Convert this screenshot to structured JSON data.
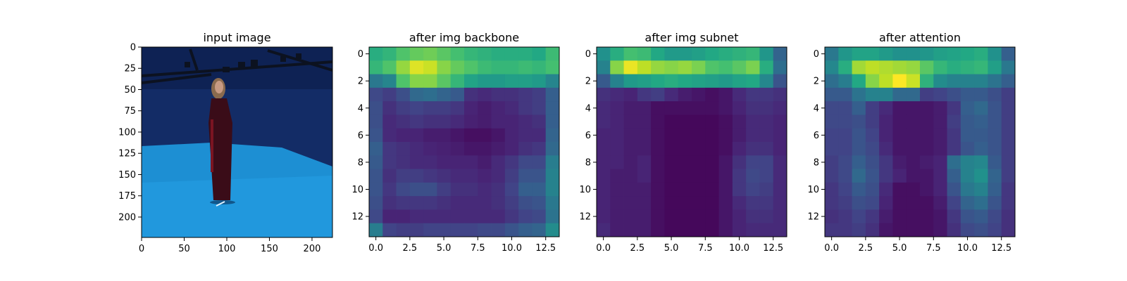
{
  "figure": {
    "panels": [
      {
        "title": "input image"
      },
      {
        "title": "after img backbone"
      },
      {
        "title": "after img subnet"
      },
      {
        "title": "after attention"
      }
    ]
  },
  "colors": {
    "viridis": [
      "#440154",
      "#482475",
      "#414487",
      "#355f8d",
      "#2a788e",
      "#21918c",
      "#22a884",
      "#44bf70",
      "#7ad151",
      "#bddf26",
      "#fde725"
    ],
    "photo_wall": "#132c66",
    "photo_floor": "#1d8fd3",
    "photo_rig": "#0c1220",
    "person_dress": "#3a0c18",
    "person_skin": "#c79a83"
  },
  "chart_data": [
    {
      "type": "image",
      "title": "input image",
      "image_content": "photo of a person standing in a blue-lit studio",
      "xlim": [
        0,
        224
      ],
      "ylim": [
        224,
        0
      ],
      "xticks": [
        0,
        50,
        100,
        150,
        200
      ],
      "yticks": [
        0,
        25,
        50,
        75,
        100,
        125,
        150,
        175,
        200
      ]
    },
    {
      "type": "heatmap",
      "title": "after img backbone",
      "colormap": "viridis",
      "xlim": [
        -0.5,
        13.5
      ],
      "ylim": [
        13.5,
        -0.5
      ],
      "xticks": [
        0.0,
        2.5,
        5.0,
        7.5,
        10.0,
        12.5
      ],
      "yticks": [
        0,
        2,
        4,
        6,
        8,
        10,
        12
      ],
      "values": [
        [
          0.62,
          0.65,
          0.72,
          0.76,
          0.78,
          0.74,
          0.7,
          0.66,
          0.64,
          0.62,
          0.62,
          0.62,
          0.6,
          0.68
        ],
        [
          0.66,
          0.72,
          0.84,
          0.95,
          0.92,
          0.82,
          0.76,
          0.72,
          0.68,
          0.66,
          0.66,
          0.68,
          0.66,
          0.7
        ],
        [
          0.4,
          0.45,
          0.72,
          0.82,
          0.82,
          0.74,
          0.66,
          0.58,
          0.54,
          0.54,
          0.56,
          0.56,
          0.54,
          0.45
        ],
        [
          0.22,
          0.18,
          0.24,
          0.34,
          0.36,
          0.32,
          0.28,
          0.14,
          0.12,
          0.14,
          0.14,
          0.16,
          0.18,
          0.3
        ],
        [
          0.24,
          0.14,
          0.18,
          0.2,
          0.18,
          0.18,
          0.16,
          0.1,
          0.08,
          0.1,
          0.12,
          0.16,
          0.18,
          0.3
        ],
        [
          0.24,
          0.12,
          0.14,
          0.16,
          0.14,
          0.14,
          0.12,
          0.09,
          0.08,
          0.1,
          0.1,
          0.12,
          0.14,
          0.3
        ],
        [
          0.26,
          0.12,
          0.1,
          0.1,
          0.08,
          0.08,
          0.06,
          0.04,
          0.04,
          0.06,
          0.1,
          0.12,
          0.12,
          0.32
        ],
        [
          0.3,
          0.16,
          0.14,
          0.12,
          0.1,
          0.09,
          0.08,
          0.06,
          0.06,
          0.08,
          0.1,
          0.14,
          0.16,
          0.34
        ],
        [
          0.28,
          0.16,
          0.14,
          0.12,
          0.12,
          0.1,
          0.1,
          0.1,
          0.08,
          0.12,
          0.16,
          0.22,
          0.22,
          0.42
        ],
        [
          0.26,
          0.14,
          0.18,
          0.18,
          0.16,
          0.14,
          0.12,
          0.12,
          0.1,
          0.12,
          0.18,
          0.26,
          0.26,
          0.44
        ],
        [
          0.26,
          0.16,
          0.22,
          0.24,
          0.24,
          0.18,
          0.14,
          0.14,
          0.12,
          0.14,
          0.2,
          0.3,
          0.3,
          0.44
        ],
        [
          0.24,
          0.14,
          0.16,
          0.16,
          0.16,
          0.14,
          0.12,
          0.12,
          0.12,
          0.14,
          0.18,
          0.24,
          0.26,
          0.4
        ],
        [
          0.22,
          0.1,
          0.1,
          0.12,
          0.12,
          0.12,
          0.12,
          0.12,
          0.12,
          0.12,
          0.16,
          0.2,
          0.22,
          0.38
        ],
        [
          0.42,
          0.2,
          0.18,
          0.18,
          0.2,
          0.2,
          0.2,
          0.2,
          0.22,
          0.22,
          0.26,
          0.3,
          0.32,
          0.48
        ]
      ]
    },
    {
      "type": "heatmap",
      "title": "after img subnet",
      "colormap": "viridis",
      "xlim": [
        -0.5,
        13.5
      ],
      "ylim": [
        13.5,
        -0.5
      ],
      "xticks": [
        0.0,
        2.5,
        5.0,
        7.5,
        10.0,
        12.5
      ],
      "yticks": [
        0,
        2,
        4,
        6,
        8,
        10,
        12
      ],
      "values": [
        [
          0.5,
          0.62,
          0.7,
          0.68,
          0.6,
          0.54,
          0.54,
          0.56,
          0.6,
          0.62,
          0.64,
          0.66,
          0.52,
          0.32
        ],
        [
          0.44,
          0.82,
          0.97,
          0.9,
          0.84,
          0.82,
          0.84,
          0.8,
          0.72,
          0.7,
          0.74,
          0.8,
          0.62,
          0.36
        ],
        [
          0.28,
          0.44,
          0.54,
          0.56,
          0.6,
          0.62,
          0.6,
          0.58,
          0.56,
          0.54,
          0.58,
          0.6,
          0.46,
          0.26
        ],
        [
          0.14,
          0.12,
          0.1,
          0.16,
          0.18,
          0.12,
          0.08,
          0.06,
          0.04,
          0.06,
          0.12,
          0.16,
          0.16,
          0.14
        ],
        [
          0.12,
          0.1,
          0.08,
          0.08,
          0.04,
          0.04,
          0.04,
          0.04,
          0.04,
          0.06,
          0.1,
          0.14,
          0.14,
          0.12
        ],
        [
          0.12,
          0.1,
          0.08,
          0.08,
          0.04,
          0.02,
          0.02,
          0.02,
          0.02,
          0.04,
          0.08,
          0.12,
          0.12,
          0.1
        ],
        [
          0.1,
          0.1,
          0.08,
          0.08,
          0.04,
          0.02,
          0.02,
          0.02,
          0.02,
          0.04,
          0.08,
          0.12,
          0.12,
          0.1
        ],
        [
          0.1,
          0.1,
          0.08,
          0.08,
          0.04,
          0.02,
          0.02,
          0.02,
          0.02,
          0.04,
          0.1,
          0.14,
          0.14,
          0.1
        ],
        [
          0.1,
          0.1,
          0.08,
          0.1,
          0.04,
          0.02,
          0.02,
          0.02,
          0.02,
          0.06,
          0.14,
          0.2,
          0.2,
          0.12
        ],
        [
          0.1,
          0.08,
          0.08,
          0.1,
          0.04,
          0.02,
          0.02,
          0.02,
          0.02,
          0.06,
          0.16,
          0.22,
          0.2,
          0.12
        ],
        [
          0.1,
          0.08,
          0.08,
          0.08,
          0.04,
          0.02,
          0.02,
          0.02,
          0.02,
          0.06,
          0.16,
          0.2,
          0.18,
          0.12
        ],
        [
          0.1,
          0.08,
          0.08,
          0.08,
          0.04,
          0.02,
          0.02,
          0.02,
          0.02,
          0.06,
          0.12,
          0.16,
          0.16,
          0.12
        ],
        [
          0.1,
          0.08,
          0.08,
          0.08,
          0.04,
          0.02,
          0.02,
          0.02,
          0.02,
          0.06,
          0.1,
          0.14,
          0.14,
          0.12
        ],
        [
          0.12,
          0.08,
          0.08,
          0.08,
          0.04,
          0.02,
          0.02,
          0.02,
          0.02,
          0.06,
          0.1,
          0.12,
          0.12,
          0.12
        ]
      ]
    },
    {
      "type": "heatmap",
      "title": "after attention",
      "colormap": "viridis",
      "xlim": [
        -0.5,
        13.5
      ],
      "ylim": [
        13.5,
        -0.5
      ],
      "xticks": [
        0.0,
        2.5,
        5.0,
        7.5,
        10.0,
        12.5
      ],
      "yticks": [
        0,
        2,
        4,
        6,
        8,
        10,
        12
      ],
      "values": [
        [
          0.4,
          0.52,
          0.58,
          0.58,
          0.54,
          0.5,
          0.5,
          0.52,
          0.56,
          0.58,
          0.6,
          0.62,
          0.5,
          0.3
        ],
        [
          0.46,
          0.62,
          0.86,
          0.9,
          0.88,
          0.86,
          0.84,
          0.74,
          0.66,
          0.62,
          0.64,
          0.66,
          0.56,
          0.4
        ],
        [
          0.36,
          0.42,
          0.6,
          0.82,
          0.9,
          1.0,
          0.92,
          0.64,
          0.48,
          0.44,
          0.44,
          0.44,
          0.38,
          0.3
        ],
        [
          0.28,
          0.28,
          0.38,
          0.44,
          0.44,
          0.34,
          0.34,
          0.18,
          0.2,
          0.24,
          0.28,
          0.28,
          0.24,
          0.18
        ],
        [
          0.22,
          0.22,
          0.3,
          0.18,
          0.12,
          0.06,
          0.06,
          0.06,
          0.08,
          0.16,
          0.3,
          0.34,
          0.26,
          0.18
        ],
        [
          0.22,
          0.22,
          0.24,
          0.18,
          0.1,
          0.06,
          0.06,
          0.06,
          0.08,
          0.18,
          0.28,
          0.3,
          0.26,
          0.18
        ],
        [
          0.2,
          0.2,
          0.26,
          0.2,
          0.1,
          0.06,
          0.06,
          0.06,
          0.08,
          0.16,
          0.28,
          0.28,
          0.26,
          0.18
        ],
        [
          0.2,
          0.2,
          0.26,
          0.22,
          0.12,
          0.06,
          0.06,
          0.06,
          0.08,
          0.16,
          0.26,
          0.3,
          0.26,
          0.18
        ],
        [
          0.18,
          0.22,
          0.3,
          0.24,
          0.16,
          0.08,
          0.06,
          0.08,
          0.1,
          0.36,
          0.44,
          0.46,
          0.28,
          0.18
        ],
        [
          0.18,
          0.22,
          0.34,
          0.26,
          0.16,
          0.1,
          0.06,
          0.06,
          0.1,
          0.3,
          0.44,
          0.5,
          0.32,
          0.18
        ],
        [
          0.16,
          0.2,
          0.28,
          0.24,
          0.12,
          0.04,
          0.04,
          0.06,
          0.1,
          0.26,
          0.4,
          0.44,
          0.3,
          0.16
        ],
        [
          0.16,
          0.18,
          0.24,
          0.22,
          0.1,
          0.04,
          0.04,
          0.04,
          0.08,
          0.2,
          0.32,
          0.36,
          0.26,
          0.16
        ],
        [
          0.14,
          0.16,
          0.2,
          0.16,
          0.08,
          0.04,
          0.04,
          0.04,
          0.06,
          0.16,
          0.26,
          0.28,
          0.22,
          0.14
        ],
        [
          0.16,
          0.16,
          0.18,
          0.14,
          0.06,
          0.04,
          0.04,
          0.04,
          0.06,
          0.14,
          0.22,
          0.24,
          0.2,
          0.14
        ]
      ]
    }
  ]
}
